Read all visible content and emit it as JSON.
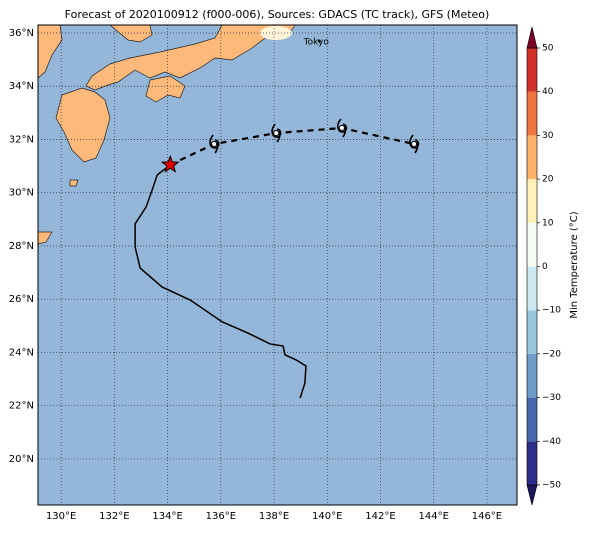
{
  "chart_data": {
    "type": "track_map",
    "title": "Forecast of 2020100912 (f000-006), Sources: GDACS (TC track), GFS (Meteo)",
    "xlim": [
      129.13,
      147.13
    ],
    "ylim": [
      18.27,
      36.3
    ],
    "xticks": [
      {
        "value": 130,
        "label": "130°E"
      },
      {
        "value": 132,
        "label": "132°E"
      },
      {
        "value": 134,
        "label": "134°E"
      },
      {
        "value": 136,
        "label": "136°E"
      },
      {
        "value": 138,
        "label": "138°E"
      },
      {
        "value": 140,
        "label": "140°E"
      },
      {
        "value": 142,
        "label": "142°E"
      },
      {
        "value": 144,
        "label": "144°E"
      },
      {
        "value": 146,
        "label": "146°E"
      }
    ],
    "yticks": [
      {
        "value": 20,
        "label": "20°N"
      },
      {
        "value": 22,
        "label": "22°N"
      },
      {
        "value": 24,
        "label": "24°N"
      },
      {
        "value": 26,
        "label": "26°N"
      },
      {
        "value": 28,
        "label": "28°N"
      },
      {
        "value": 30,
        "label": "30°N"
      },
      {
        "value": 32,
        "label": "32°N"
      },
      {
        "value": 34,
        "label": "34°N"
      },
      {
        "value": 36,
        "label": "36°N"
      }
    ],
    "grid": true,
    "city": {
      "name": "Tokyo",
      "lon": 139.7,
      "lat": 35.7
    },
    "past_track": {
      "color": "#000000",
      "lon": [
        138.98,
        139.16,
        139.2,
        138.83,
        138.41,
        138.34,
        137.85,
        137.02,
        136.05,
        134.85,
        133.79,
        132.97,
        132.78,
        132.78,
        133.19,
        133.42,
        133.61,
        134.09
      ],
      "lat": [
        22.29,
        22.85,
        23.49,
        23.72,
        23.91,
        24.24,
        24.32,
        24.73,
        25.15,
        25.97,
        26.46,
        27.17,
        27.96,
        28.83,
        29.46,
        30.1,
        30.67,
        31.04
      ]
    },
    "current_position": {
      "lon": 134.1,
      "lat": 31.05,
      "color": "#e00000"
    },
    "forecast_track": {
      "color": "#000000",
      "lon": [
        134.1,
        135.75,
        138.08,
        140.55,
        143.26
      ],
      "lat": [
        31.05,
        31.83,
        32.24,
        32.43,
        31.83
      ]
    },
    "colorbar": {
      "label": "Min Temperature (°C)",
      "clim": [
        -50,
        50
      ],
      "ticks": [
        {
          "value": -50,
          "label": "−50"
        },
        {
          "value": -40,
          "label": "−40"
        },
        {
          "value": -30,
          "label": "−30"
        },
        {
          "value": -20,
          "label": "−20"
        },
        {
          "value": -10,
          "label": "−10"
        },
        0,
        10,
        20,
        30,
        40,
        50
      ],
      "colors": [
        "#2b2f8a",
        "#4669ad",
        "#6d9dc8",
        "#98c7de",
        "#cbe8f0",
        "#f4fbf3",
        "#fff1b8",
        "#fdb46a",
        "#f0743f",
        "#d2312a",
        "#a50f26"
      ],
      "under": "#1c1a5c",
      "over": "#7f0026"
    },
    "ocean_color": "#94b6d8",
    "land_color": "#fdb97a"
  }
}
